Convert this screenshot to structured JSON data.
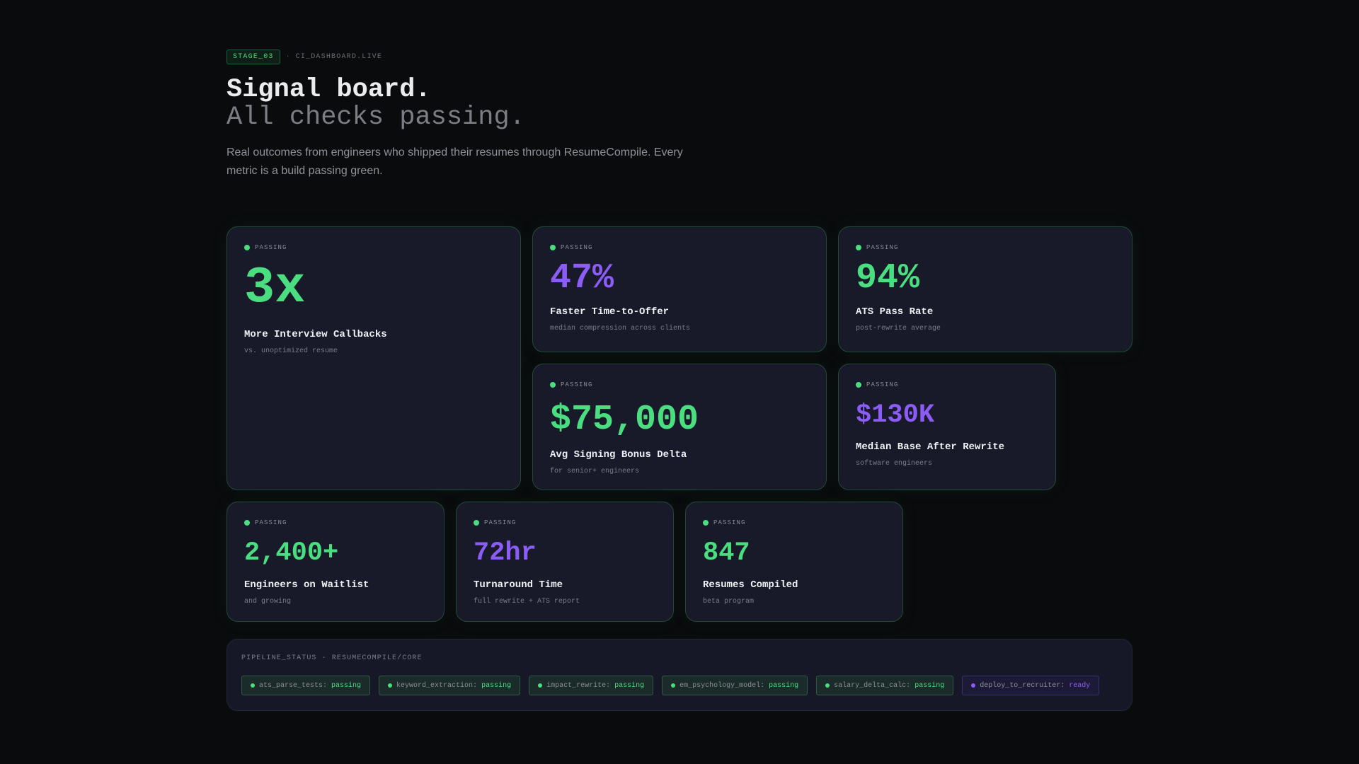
{
  "header": {
    "stage_badge": "STAGE_03",
    "separator": "·",
    "source": "CI_DASHBOARD.LIVE",
    "title": "Signal board.",
    "subtitle": "All checks passing.",
    "intro": "Real outcomes from engineers who shipped their resumes through ResumeCompile. Every metric is a build passing green."
  },
  "colors": {
    "accent_green": "#4ade80",
    "accent_purple": "#8b5cf6",
    "background": "#0a0b0d",
    "card": "#181a2a"
  },
  "cards": [
    {
      "status": "PASSING",
      "metric": "3x",
      "label": "More Interview Callbacks",
      "caption": "vs. unoptimized resume",
      "accent": "green"
    },
    {
      "status": "PASSING",
      "metric": "47%",
      "label": "Faster Time-to-Offer",
      "caption": "median compression across clients",
      "accent": "purple"
    },
    {
      "status": "PASSING",
      "metric": "94%",
      "label": "ATS Pass Rate",
      "caption": "post-rewrite average",
      "accent": "green"
    },
    {
      "status": "PASSING",
      "metric": "$75,000",
      "label": "Avg Signing Bonus Delta",
      "caption": "for senior+ engineers",
      "accent": "green"
    },
    {
      "status": "PASSING",
      "metric": "$130K",
      "label": "Median Base After Rewrite",
      "caption": "software engineers",
      "accent": "purple"
    },
    {
      "status": "PASSING",
      "metric": "2,400+",
      "label": "Engineers on Waitlist",
      "caption": "and growing",
      "accent": "green"
    },
    {
      "status": "PASSING",
      "metric": "72hr",
      "label": "Turnaround Time",
      "caption": "full rewrite + ATS report",
      "accent": "purple"
    },
    {
      "status": "PASSING",
      "metric": "847",
      "label": "Resumes Compiled",
      "caption": "beta program",
      "accent": "green"
    }
  ],
  "pipeline": {
    "title": "PIPELINE_STATUS · RESUMECOMPILE/CORE",
    "jobs": [
      {
        "name": "ats_parse_tests:",
        "state": "passing"
      },
      {
        "name": "keyword_extraction:",
        "state": "passing"
      },
      {
        "name": "impact_rewrite:",
        "state": "passing"
      },
      {
        "name": "em_psychology_model:",
        "state": "passing"
      },
      {
        "name": "salary_delta_calc:",
        "state": "passing"
      },
      {
        "name": "deploy_to_recruiter:",
        "state": "ready"
      }
    ]
  }
}
